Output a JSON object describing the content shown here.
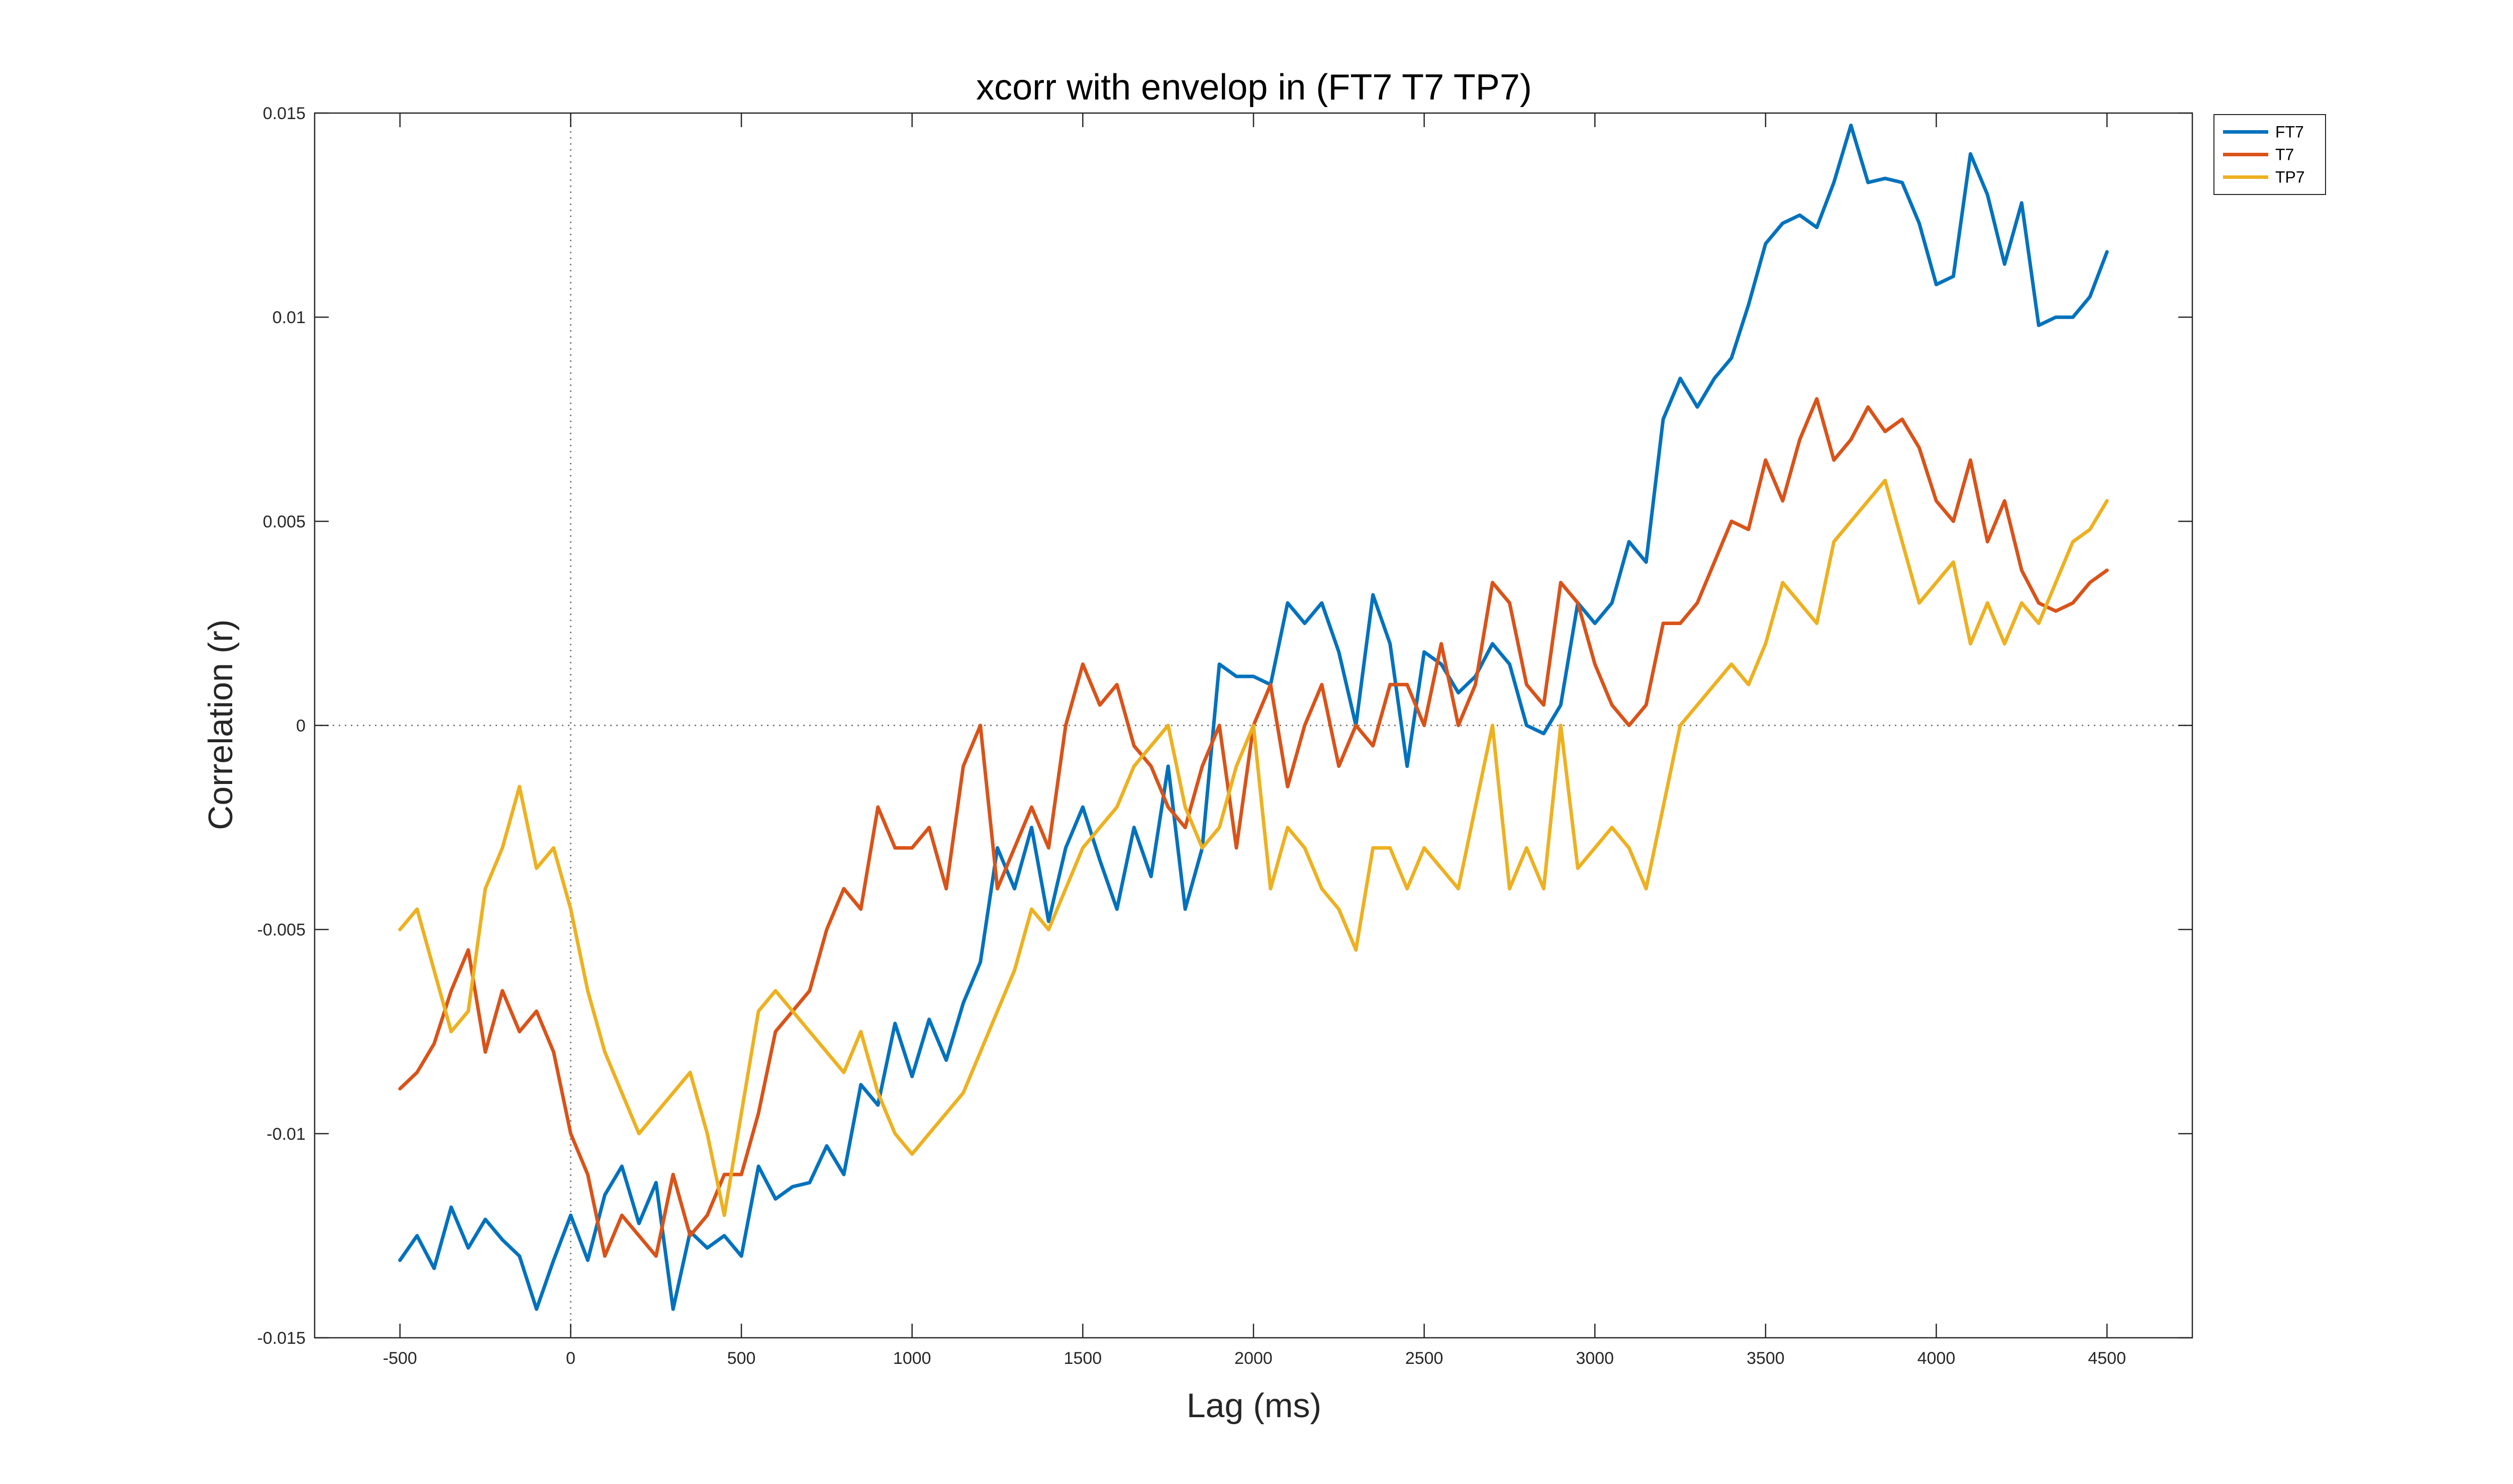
{
  "chart_data": {
    "type": "line",
    "title": "xcorr with envelop in (FT7 T7 TP7)",
    "xlabel": "Lag (ms)",
    "ylabel": "Correlation (r)",
    "xlim": [
      -750,
      4750
    ],
    "ylim": [
      -0.015,
      0.015
    ],
    "xticks": [
      -500,
      0,
      500,
      1000,
      1500,
      2000,
      2500,
      3000,
      3500,
      4000,
      4500
    ],
    "xtick_labels": [
      "-500",
      "0",
      "500",
      "1000",
      "1500",
      "2000",
      "2500",
      "3000",
      "3500",
      "4000",
      "4500"
    ],
    "yticks": [
      -0.015,
      -0.01,
      -0.005,
      0,
      0.005,
      0.01,
      0.015
    ],
    "ytick_labels": [
      "-0.015",
      "-0.01",
      "-0.005",
      "0",
      "0.005",
      "0.01",
      "0.015"
    ],
    "reference_lines": {
      "x_zero": true,
      "y_zero": true
    },
    "grid": false,
    "legend_position": "outside top-right",
    "series": [
      {
        "name": "FT7",
        "color": "#0072BD",
        "x": [
          -500,
          -450,
          -400,
          -350,
          -300,
          -250,
          -200,
          -150,
          -100,
          -50,
          0,
          50,
          100,
          150,
          200,
          250,
          300,
          350,
          400,
          450,
          500,
          550,
          600,
          650,
          700,
          750,
          800,
          850,
          900,
          950,
          1000,
          1050,
          1100,
          1150,
          1200,
          1250,
          1300,
          1350,
          1400,
          1450,
          1500,
          1550,
          1600,
          1650,
          1700,
          1750,
          1800,
          1850,
          1900,
          1950,
          2000,
          2050,
          2100,
          2150,
          2200,
          2250,
          2300,
          2350,
          2400,
          2450,
          2500,
          2550,
          2600,
          2650,
          2700,
          2750,
          2800,
          2850,
          2900,
          2950,
          3000,
          3050,
          3100,
          3150,
          3200,
          3250,
          3300,
          3350,
          3400,
          3450,
          3500,
          3550,
          3600,
          3650,
          3700,
          3750,
          3800,
          3850,
          3900,
          3950,
          4000,
          4050,
          4100,
          4150,
          4200,
          4250,
          4300,
          4350,
          4400,
          4450,
          4500
        ],
        "y": [
          -0.0131,
          -0.0125,
          -0.0133,
          -0.0118,
          -0.0128,
          -0.0121,
          -0.0126,
          -0.013,
          -0.0143,
          -0.0131,
          -0.012,
          -0.0131,
          -0.0115,
          -0.0108,
          -0.0122,
          -0.0112,
          -0.0143,
          -0.0124,
          -0.0128,
          -0.0125,
          -0.013,
          -0.0108,
          -0.0116,
          -0.0113,
          -0.0112,
          -0.0103,
          -0.011,
          -0.0088,
          -0.0093,
          -0.0073,
          -0.0086,
          -0.0072,
          -0.0082,
          -0.0068,
          -0.0058,
          -0.003,
          -0.004,
          -0.0025,
          -0.0048,
          -0.003,
          -0.002,
          -0.0033,
          -0.0045,
          -0.0025,
          -0.0037,
          -0.001,
          -0.0045,
          -0.003,
          0.0015,
          0.0012,
          0.0012,
          0.001,
          0.003,
          0.0025,
          0.003,
          0.0018,
          0.0,
          0.0032,
          0.002,
          -0.001,
          0.0018,
          0.0015,
          0.0008,
          0.0012,
          0.002,
          0.0015,
          0.0,
          -0.0002,
          0.0005,
          0.003,
          0.0025,
          0.003,
          0.0045,
          0.004,
          0.0075,
          0.0085,
          0.0078,
          0.0085,
          0.009,
          0.0103,
          0.0118,
          0.0123,
          0.0125,
          0.0122,
          0.0133,
          0.0147,
          0.0133,
          0.0134,
          0.0133,
          0.0123,
          0.0108,
          0.011,
          0.014,
          0.013,
          0.0113,
          0.0128,
          0.0098,
          0.01,
          0.01,
          0.0105,
          0.0116
        ]
      },
      {
        "name": "T7",
        "color": "#D95319",
        "x": [
          -500,
          -450,
          -400,
          -350,
          -300,
          -250,
          -200,
          -150,
          -100,
          -50,
          0,
          50,
          100,
          150,
          200,
          250,
          300,
          350,
          400,
          450,
          500,
          550,
          600,
          650,
          700,
          750,
          800,
          850,
          900,
          950,
          1000,
          1050,
          1100,
          1150,
          1200,
          1250,
          1300,
          1350,
          1400,
          1450,
          1500,
          1550,
          1600,
          1650,
          1700,
          1750,
          1800,
          1850,
          1900,
          1950,
          2000,
          2050,
          2100,
          2150,
          2200,
          2250,
          2300,
          2350,
          2400,
          2450,
          2500,
          2550,
          2600,
          2650,
          2700,
          2750,
          2800,
          2850,
          2900,
          2950,
          3000,
          3050,
          3100,
          3150,
          3200,
          3250,
          3300,
          3350,
          3400,
          3450,
          3500,
          3550,
          3600,
          3650,
          3700,
          3750,
          3800,
          3850,
          3900,
          3950,
          4000,
          4050,
          4100,
          4150,
          4200,
          4250,
          4300,
          4350,
          4400,
          4450,
          4500
        ],
        "y": [
          -0.0089,
          -0.0085,
          -0.0078,
          -0.0065,
          -0.0055,
          -0.008,
          -0.0065,
          -0.0075,
          -0.007,
          -0.008,
          -0.01,
          -0.011,
          -0.013,
          -0.012,
          -0.0125,
          -0.013,
          -0.011,
          -0.0125,
          -0.012,
          -0.011,
          -0.011,
          -0.0095,
          -0.0075,
          -0.007,
          -0.0065,
          -0.005,
          -0.004,
          -0.0045,
          -0.002,
          -0.003,
          -0.003,
          -0.0025,
          -0.004,
          -0.001,
          0.0,
          -0.004,
          -0.003,
          -0.002,
          -0.003,
          0.0,
          0.0015,
          0.0005,
          0.001,
          -0.0005,
          -0.001,
          -0.002,
          -0.0025,
          -0.001,
          0.0,
          -0.003,
          0.0,
          0.001,
          -0.0015,
          0.0,
          0.001,
          -0.001,
          0.0,
          -0.0005,
          0.001,
          0.001,
          0.0,
          0.002,
          0.0,
          0.001,
          0.0035,
          0.003,
          0.001,
          0.0005,
          0.0035,
          0.003,
          0.0015,
          0.0005,
          0.0,
          0.0005,
          0.0025,
          0.0025,
          0.003,
          0.004,
          0.005,
          0.0048,
          0.0065,
          0.0055,
          0.007,
          0.008,
          0.0065,
          0.007,
          0.0078,
          0.0072,
          0.0075,
          0.0068,
          0.0055,
          0.005,
          0.0065,
          0.0045,
          0.0055,
          0.0038,
          0.003,
          0.0028,
          0.003,
          0.0035,
          0.0038
        ]
      },
      {
        "name": "TP7",
        "color": "#EDB120",
        "x": [
          -500,
          -450,
          -400,
          -350,
          -300,
          -250,
          -200,
          -150,
          -100,
          -50,
          0,
          50,
          100,
          150,
          200,
          250,
          300,
          350,
          400,
          450,
          500,
          550,
          600,
          650,
          700,
          750,
          800,
          850,
          900,
          950,
          1000,
          1050,
          1100,
          1150,
          1200,
          1250,
          1300,
          1350,
          1400,
          1450,
          1500,
          1550,
          1600,
          1650,
          1700,
          1750,
          1800,
          1850,
          1900,
          1950,
          2000,
          2050,
          2100,
          2150,
          2200,
          2250,
          2300,
          2350,
          2400,
          2450,
          2500,
          2550,
          2600,
          2650,
          2700,
          2750,
          2800,
          2850,
          2900,
          2950,
          3000,
          3050,
          3100,
          3150,
          3200,
          3250,
          3300,
          3350,
          3400,
          3450,
          3500,
          3550,
          3600,
          3650,
          3700,
          3750,
          3800,
          3850,
          3900,
          3950,
          4000,
          4050,
          4100,
          4150,
          4200,
          4250,
          4300,
          4350,
          4400,
          4450,
          4500
        ],
        "y": [
          -0.005,
          -0.0045,
          -0.006,
          -0.0075,
          -0.007,
          -0.004,
          -0.003,
          -0.0015,
          -0.0035,
          -0.003,
          -0.0045,
          -0.0065,
          -0.008,
          -0.009,
          -0.01,
          -0.0095,
          -0.009,
          -0.0085,
          -0.01,
          -0.012,
          -0.0095,
          -0.007,
          -0.0065,
          -0.007,
          -0.0075,
          -0.008,
          -0.0085,
          -0.0075,
          -0.009,
          -0.01,
          -0.0105,
          -0.01,
          -0.0095,
          -0.009,
          -0.008,
          -0.007,
          -0.006,
          -0.0045,
          -0.005,
          -0.004,
          -0.003,
          -0.0025,
          -0.002,
          -0.001,
          -0.0005,
          0.0,
          -0.002,
          -0.003,
          -0.0025,
          -0.001,
          0.0,
          -0.004,
          -0.0025,
          -0.003,
          -0.004,
          -0.0045,
          -0.0055,
          -0.003,
          -0.003,
          -0.004,
          -0.003,
          -0.0035,
          -0.004,
          -0.002,
          0.0,
          -0.004,
          -0.003,
          -0.004,
          0.0,
          -0.0035,
          -0.003,
          -0.0025,
          -0.003,
          -0.004,
          -0.002,
          0.0,
          0.0005,
          0.001,
          0.0015,
          0.001,
          0.002,
          0.0035,
          0.003,
          0.0025,
          0.0045,
          0.005,
          0.0055,
          0.006,
          0.0045,
          0.003,
          0.0035,
          0.004,
          0.002,
          0.003,
          0.002,
          0.003,
          0.0025,
          0.0035,
          0.0045,
          0.0048,
          0.0055
        ]
      }
    ]
  }
}
